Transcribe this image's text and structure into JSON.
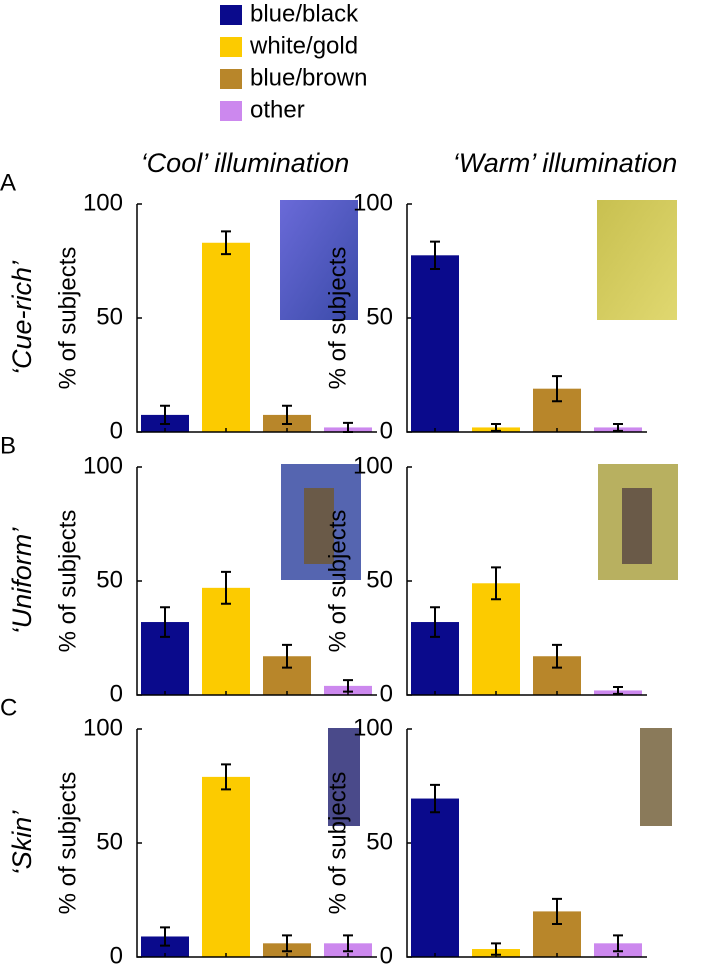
{
  "legend": {
    "items": [
      {
        "name": "blue/black",
        "color": "#0a0a8c"
      },
      {
        "name": "white/gold",
        "color": "#fccb00"
      },
      {
        "name": "blue/brown",
        "color": "#b8862a"
      },
      {
        "name": "other",
        "color": "#cc88ee"
      }
    ]
  },
  "columns": [
    "‘Cool’ illumination",
    "‘Warm’ illumination"
  ],
  "rows": [
    {
      "letter": "A",
      "label": "‘Cue-rich’"
    },
    {
      "letter": "B",
      "label": "‘Uniform’"
    },
    {
      "letter": "C",
      "label": "‘Skin’"
    }
  ],
  "chart_data": [
    {
      "type": "bar",
      "y_label": "% of subjects",
      "categories": [
        null,
        null,
        null,
        null
      ],
      "values": [
        7.5,
        83,
        7.5,
        2
      ],
      "errors": [
        4,
        5,
        4,
        2
      ],
      "ylim": [
        0,
        100
      ],
      "yticks": [
        0,
        50,
        100
      ]
    },
    {
      "type": "bar",
      "y_label": "% of subjects",
      "categories": [
        null,
        null,
        null,
        null
      ],
      "values": [
        77.5,
        2,
        19,
        2
      ],
      "errors": [
        6,
        1.5,
        5.5,
        1.5
      ],
      "ylim": [
        0,
        100
      ],
      "yticks": [
        0,
        50,
        100
      ]
    },
    {
      "type": "bar",
      "y_label": "% of subjects",
      "categories": [
        null,
        null,
        null,
        null
      ],
      "values": [
        32,
        47,
        17,
        4
      ],
      "errors": [
        6.5,
        7,
        5,
        2.5
      ],
      "ylim": [
        0,
        100
      ],
      "yticks": [
        0,
        50,
        100
      ]
    },
    {
      "type": "bar",
      "y_label": "% of subjects",
      "categories": [
        null,
        null,
        null,
        null
      ],
      "values": [
        32,
        49,
        17,
        2
      ],
      "errors": [
        6.5,
        7,
        5,
        1.5
      ],
      "ylim": [
        0,
        100
      ],
      "yticks": [
        0,
        50,
        100
      ]
    },
    {
      "type": "bar",
      "y_label": "% of subjects",
      "categories": [
        null,
        null,
        null,
        null
      ],
      "values": [
        9,
        79,
        6,
        6
      ],
      "errors": [
        4,
        5.5,
        3.5,
        3.5
      ],
      "ylim": [
        0,
        100
      ],
      "yticks": [
        0,
        50,
        100
      ]
    },
    {
      "type": "bar",
      "y_label": "% of subjects",
      "categories": [
        null,
        null,
        null,
        null
      ],
      "values": [
        69.5,
        3.5,
        20,
        6
      ],
      "errors": [
        6,
        2.5,
        5.5,
        3.5
      ],
      "ylim": [
        0,
        100
      ],
      "yticks": [
        0,
        50,
        100
      ]
    }
  ]
}
